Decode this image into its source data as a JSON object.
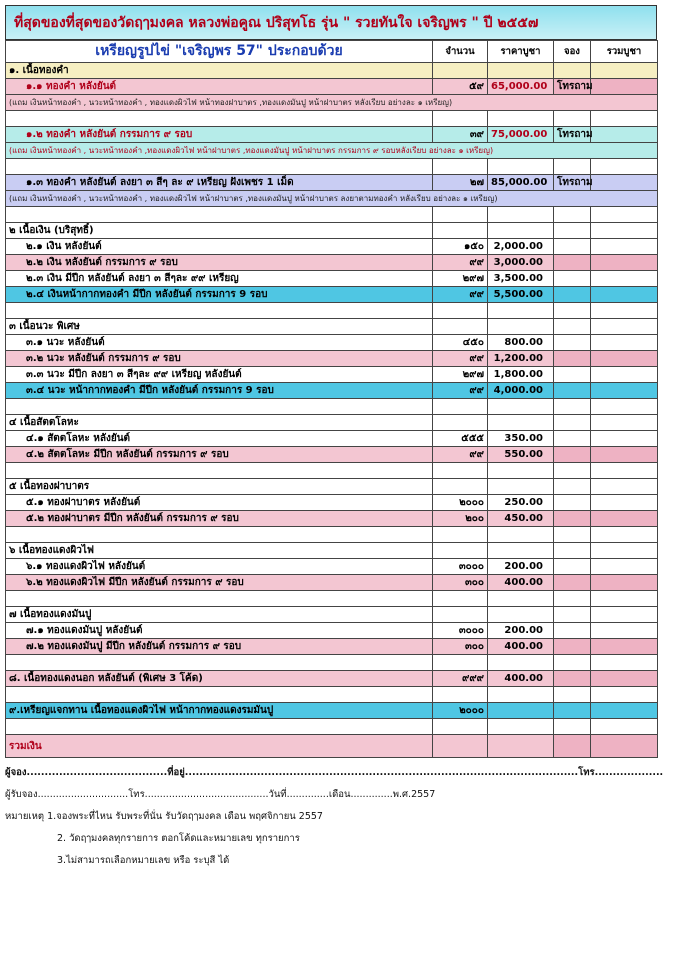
{
  "title": "ที่สุดของที่สุดของวัดฤๅมงคล หลวงพ่อคูณ ปริสุทโธ  รุ่น \" รวยทันใจ เจริญพร \"  ปี ๒๕๕๗",
  "header": {
    "item": "เหรียญรูปไข่ \"เจริญพร 57\" ประกอบด้วย",
    "qty": "จำนวน",
    "price": "ราคาบูชา",
    "reserve": "จอง",
    "total": "รวมบูชา"
  },
  "colors": {
    "yellow": "#f6efc2",
    "pink": "#f3c6d2",
    "cyan": "#b6ece9",
    "lavender": "#c9cdf3",
    "blue": "#4fc6e3",
    "white": "#ffffff"
  },
  "rows": [
    {
      "type": "cat",
      "label": "๑. เนื้อทองคำ",
      "bg": "yellow"
    },
    {
      "type": "item",
      "label": "๑.๑  ทองคำ หลังยันต์",
      "qty": "๕๙",
      "price": "65,000.00",
      "reserve": "โทรถาม",
      "bg": "pink",
      "red": true
    },
    {
      "type": "note",
      "label": "(แถม เงินหน้าทองคำ , นวะหน้าทองคำ , ทองแดงผิวไฟ หน้าทองฝาบาตร ,ทองแดงมันปู หน้าฝาบาตร หลังเรียบ อย่างละ ๑ เหรียญ)",
      "bg": "pink"
    },
    {
      "type": "blank",
      "bg": "white"
    },
    {
      "type": "item",
      "label": "๑.๒  ทองคำ หลังยันต์  กรรมการ ๙ รอบ",
      "qty": "๓๙",
      "price": "75,000.00",
      "reserve": "โทรถาม",
      "bg": "cyan",
      "red": true
    },
    {
      "type": "note",
      "label": "(แถม เงินหน้าทองคำ , นวะหน้าทองคำ ,ทองแดงผิวไฟ หน้าฝาบาตร ,ทองแดงมันปู หน้าฝาบาตร กรรมการ ๙ รอบหลังเรียบ อย่างละ ๑ เหรียญ)",
      "bg": "cyan",
      "red": true
    },
    {
      "type": "blank",
      "bg": "white"
    },
    {
      "type": "item",
      "label": "๑.๓  ทองคำ หลังยันต์ ลงยา ๓ สีๆ ละ ๙ เหรียญ  ฝังเพชร 1 เม็ด",
      "qty": "๒๗",
      "price": "85,000.00",
      "reserve": "โทรถาม",
      "bg": "lavender"
    },
    {
      "type": "note",
      "label": "(แถม เงินหน้าทองคำ , นวะหน้าทองคำ , ทองแดงผิวไฟ หน้าฝาบาตร ,ทองแดงมันปู หน้าฝาบาตร ลงยาตามทองคำ หลังเรียบ อย่างละ ๑ เหรียญ)",
      "bg": "lavender"
    },
    {
      "type": "blank",
      "bg": "white"
    },
    {
      "type": "cat",
      "label": "๒ เนื้อเงิน (บริสุทธิ์)",
      "bg": "white"
    },
    {
      "type": "item",
      "label": "๒.๑  เงิน  หลังยันต์",
      "qty": "๑๕๐",
      "price": "2,000.00",
      "bg": "white"
    },
    {
      "type": "item",
      "label": "๒.๒  เงิน  หลังยันต์  กรรมการ ๙ รอบ",
      "qty": "๙๙",
      "price": "3,000.00",
      "bg": "pink"
    },
    {
      "type": "item",
      "label": "๒.๓  เงิน มีปีก  หลังยันต์  ลงยา ๓ สีๆละ ๙๙ เหรียญ",
      "qty": "๒๙๗",
      "price": "3,500.00",
      "bg": "white"
    },
    {
      "type": "item",
      "label": "๒.๔  เงินหน้ากากทองคำ มีปีก หลังยันต์ กรรมการ  9 รอบ",
      "qty": "๙๙",
      "price": "5,500.00",
      "bg": "blue"
    },
    {
      "type": "blank",
      "bg": "white"
    },
    {
      "type": "cat",
      "label": "๓ เนื้อนวะ พิเศษ",
      "bg": "white"
    },
    {
      "type": "item",
      "label": "๓.๑  นวะ  หลังยันต์",
      "qty": "๔๕๐",
      "price": "800.00",
      "bg": "white"
    },
    {
      "type": "item",
      "label": "๓.๒  นวะ   หลังยันต์ กรรมการ ๙ รอบ",
      "qty": "๙๙",
      "price": "1,200.00",
      "bg": "pink"
    },
    {
      "type": "item",
      "label": "๓.๓  นวะ มีปีก  ลงยา ๓ สีๆละ ๙๙ เหรียญ หลังยันต์",
      "qty": "๒๙๗",
      "price": "1,800.00",
      "bg": "white"
    },
    {
      "type": "item",
      "label": "๓.๔  นวะ  หน้ากากทองคำ  มีปีก  หลังยันต์ กรรมการ 9 รอบ",
      "qty": "๙๙",
      "price": "4,000.00",
      "bg": "blue"
    },
    {
      "type": "blank",
      "bg": "white"
    },
    {
      "type": "cat",
      "label": "๔ เนื้อสัตตโลหะ",
      "bg": "white"
    },
    {
      "type": "item",
      "label": "๔.๑  สัตตโลหะ หลังยันต์",
      "qty": "๕๕๕",
      "price": "350.00",
      "bg": "white"
    },
    {
      "type": "item",
      "label": "๔.๒  สัตตโลหะ มีปีก หลังยันต์ กรรมการ ๙ รอบ",
      "qty": "๙๙",
      "price": "550.00",
      "bg": "pink"
    },
    {
      "type": "blank",
      "bg": "white"
    },
    {
      "type": "cat",
      "label": "๕ เนื้อทองฝาบาตร",
      "bg": "white"
    },
    {
      "type": "item",
      "label": "๕.๑  ทองฝาบาตร หลังยันต์",
      "qty": "๒๐๐๐",
      "price": "250.00",
      "bg": "white"
    },
    {
      "type": "item",
      "label": "๕.๒  ทองฝาบาตร มีปีก หลังยันต์ กรรมการ ๙ รอบ",
      "qty": "๒๐๐",
      "price": "450.00",
      "bg": "pink"
    },
    {
      "type": "blank",
      "bg": "white"
    },
    {
      "type": "cat",
      "label": "๖ เนื้อทองแดงผิวไฟ",
      "bg": "white"
    },
    {
      "type": "item",
      "label": "๖.๑  ทองแดงผิวไฟ หลังยันต์",
      "qty": "๓๐๐๐",
      "price": "200.00",
      "bg": "white"
    },
    {
      "type": "item",
      "label": "๖.๒  ทองแดงผิวไฟ มีปีก หลังยันต์ กรรมการ ๙ รอบ",
      "qty": "๓๐๐",
      "price": "400.00",
      "bg": "pink"
    },
    {
      "type": "blank",
      "bg": "white"
    },
    {
      "type": "cat",
      "label": "๗ เนื้อทองแดงมันปู",
      "bg": "white"
    },
    {
      "type": "item",
      "label": "๗.๑  ทองแดงมันปู หลังยันต์",
      "qty": "๓๐๐๐",
      "price": "200.00",
      "bg": "white"
    },
    {
      "type": "item",
      "label": "๗.๒  ทองแดงมันปู มีปีก หลังยันต์ กรรมการ ๙ รอบ",
      "qty": "๓๐๐",
      "price": "400.00",
      "bg": "pink"
    },
    {
      "type": "blank",
      "bg": "white"
    },
    {
      "type": "cat",
      "label": "๘. เนื้อทองแดงนอก  หลังยันต์ (พิเศษ 3 โค้ด)",
      "qty": "๙๙๙",
      "price": "400.00",
      "bg": "pink"
    },
    {
      "type": "blank",
      "bg": "white"
    },
    {
      "type": "cat",
      "label": "๙.เหรียญแจกทาน เนื้อทองแดงผิวไฟ หน้ากากทองแดงรมมันปู",
      "qty": "๒๐๐๐",
      "price": "",
      "bg": "blue"
    },
    {
      "type": "blank",
      "bg": "white"
    },
    {
      "type": "total",
      "label": "รวมเงิน",
      "bg": "pink"
    }
  ],
  "footer": {
    "line1": "ผู้จอง.......................................ที่อยู่.............................................................................................................โทร...................",
    "line2": "ผู้รับจอง..............................โทร.........................................วันที่..............เดือน..............พ.ศ.2557",
    "note1": "หมายเหตุ 1.จองพระที่ไหน รับพระที่นั่น รับวัดฤๅมงคล  เดือน พฤศจิกายน 2557",
    "note2": "2. วัดฤๅมงคลทุกรายการ ตอกโค้ดและหมายเลข ทุกรายการ",
    "note3": "3.ไม่สามารถเลือกหมายเลข หรือ ระบุสี ได้"
  }
}
